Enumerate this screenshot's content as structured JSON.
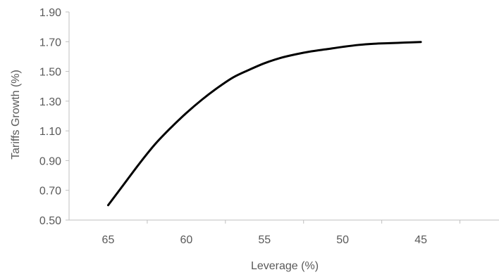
{
  "chart_data": {
    "type": "line",
    "title": "",
    "xlabel": "Leverage (%)",
    "ylabel": "Tariffs Growth (%)",
    "x_reversed": true,
    "xlim": [
      40,
      67.5
    ],
    "ylim": [
      0.5,
      1.9
    ],
    "x_ticks": [
      65,
      60,
      55,
      50,
      45
    ],
    "x_tick_labels": [
      "65",
      "60",
      "55",
      "50",
      "45"
    ],
    "y_ticks": [
      0.5,
      0.7,
      0.9,
      1.1,
      1.3,
      1.5,
      1.7,
      1.9
    ],
    "y_tick_labels": [
      "0.50",
      "0.70",
      "0.90",
      "1.10",
      "1.30",
      "1.50",
      "1.70",
      "1.90"
    ],
    "grid": false,
    "legend": "none",
    "colors": {
      "line": "#000000",
      "axis": "#bfbfbf",
      "text": "#595959"
    },
    "series": [
      {
        "x": [
          65,
          64,
          63,
          62,
          61,
          60,
          59,
          58,
          57,
          56,
          55,
          54,
          53,
          52,
          51,
          50,
          49,
          48,
          47,
          46,
          45
        ],
        "values": [
          0.6,
          0.74,
          0.88,
          1.01,
          1.12,
          1.22,
          1.31,
          1.39,
          1.46,
          1.51,
          1.555,
          1.59,
          1.615,
          1.635,
          1.65,
          1.665,
          1.678,
          1.686,
          1.69,
          1.694,
          1.698
        ]
      }
    ]
  }
}
